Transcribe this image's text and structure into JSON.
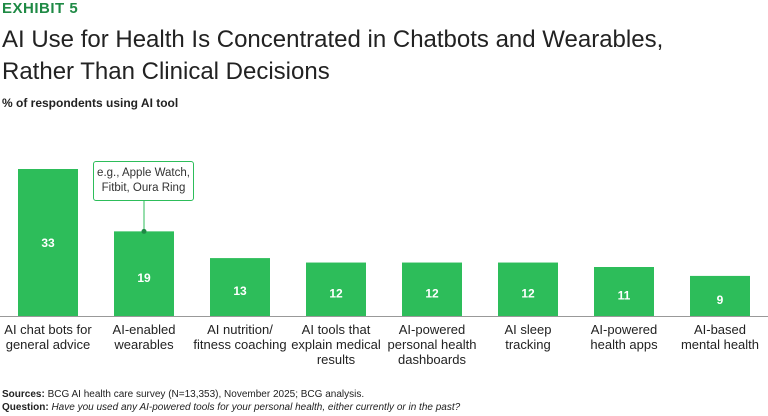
{
  "chart_data": {
    "type": "bar",
    "exhibit": "EXHIBIT 5",
    "title": "AI Use for Health Is Concentrated in Chatbots and Wearables,\nRather Than Clinical Decisions",
    "subtitle": "% of respondents using AI tool",
    "categories": [
      "AI chat bots for\ngeneral advice",
      "AI-enabled\nwearables",
      "AI nutrition/\nfitness coaching",
      "AI tools that\nexplain medical\nresults",
      "AI-powered\npersonal health\ndashboards",
      "AI sleep\ntracking",
      "AI-powered\nhealth apps",
      "AI-based\nmental health"
    ],
    "values": [
      33,
      19,
      13,
      12,
      12,
      12,
      11,
      9
    ],
    "color": "#2dbd5a",
    "annotation": {
      "text": "e.g., Apple Watch,\nFitbit, Oura Ring",
      "category": 1
    },
    "sources_label": "Sources:",
    "sources_text": "BCG AI health care survey (N=13,353), November 2025; BCG analysis.",
    "question_label": "Question:",
    "question_text": "Have you used any AI-powered tools for your personal health, either currently or in the past?"
  }
}
